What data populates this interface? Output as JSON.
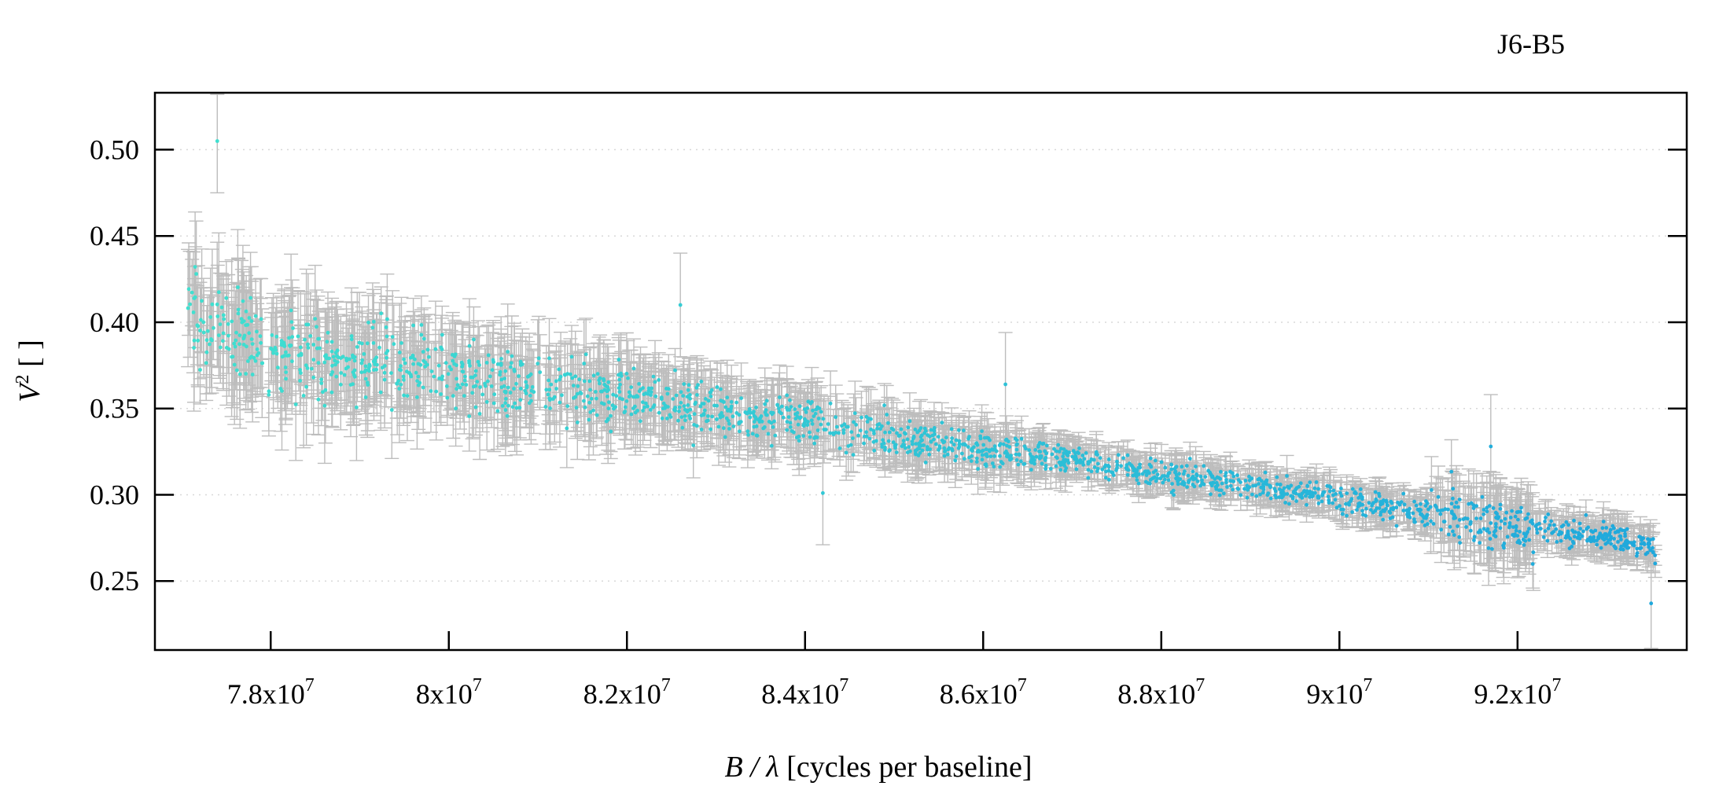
{
  "chart_data": {
    "type": "scatter",
    "title": "J6-B5",
    "xlabel": {
      "italic": "B / λ",
      "rest": " [cycles per baseline]"
    },
    "ylabel": {
      "base": "V",
      "sup": "2",
      "rest": " [ ]"
    },
    "xlim": [
      76700000,
      93900000
    ],
    "ylim": [
      0.21,
      0.533
    ],
    "x_ticks": [
      {
        "value": 78000000,
        "mantissa": "7.8x10",
        "exp": "7"
      },
      {
        "value": 80000000,
        "mantissa": "8x10",
        "exp": "7"
      },
      {
        "value": 82000000,
        "mantissa": "8.2x10",
        "exp": "7"
      },
      {
        "value": 84000000,
        "mantissa": "8.4x10",
        "exp": "7"
      },
      {
        "value": 86000000,
        "mantissa": "8.6x10",
        "exp": "7"
      },
      {
        "value": 88000000,
        "mantissa": "8.8x10",
        "exp": "7"
      },
      {
        "value": 90000000,
        "mantissa": "9x10",
        "exp": "7"
      },
      {
        "value": 92000000,
        "mantissa": "9.2x10",
        "exp": "7"
      }
    ],
    "y_ticks": [
      {
        "value": 0.25,
        "label": "0.25"
      },
      {
        "value": 0.3,
        "label": "0.30"
      },
      {
        "value": 0.35,
        "label": "0.35"
      },
      {
        "value": 0.4,
        "label": "0.40"
      },
      {
        "value": 0.45,
        "label": "0.45"
      },
      {
        "value": 0.5,
        "label": "0.50"
      }
    ],
    "grid": "horizontal dotted",
    "point_color_start": "#40e0d0",
    "point_color_end": "#1fa8dc",
    "errorbar_color": "#bdbdbd",
    "trend": [
      [
        77000000,
        0.41
      ],
      [
        77500000,
        0.395
      ],
      [
        78000000,
        0.382
      ],
      [
        79000000,
        0.378
      ],
      [
        80000000,
        0.37
      ],
      [
        81000000,
        0.364
      ],
      [
        82000000,
        0.357
      ],
      [
        83000000,
        0.35
      ],
      [
        84000000,
        0.343
      ],
      [
        85000000,
        0.333
      ],
      [
        86000000,
        0.326
      ],
      [
        87000000,
        0.32
      ],
      [
        88000000,
        0.312
      ],
      [
        89000000,
        0.305
      ],
      [
        90000000,
        0.297
      ],
      [
        91000000,
        0.289
      ],
      [
        92000000,
        0.28
      ],
      [
        93000000,
        0.276
      ],
      [
        93600000,
        0.268
      ]
    ],
    "features": [
      {
        "x": 77400000,
        "y": 0.505
      },
      {
        "x": 82600000,
        "y": 0.41
      },
      {
        "x": 84200000,
        "y": 0.301
      },
      {
        "x": 86250000,
        "y": 0.364
      },
      {
        "x": 91700000,
        "y": 0.328
      },
      {
        "x": 93500000,
        "y": 0.237
      }
    ],
    "n_points": 1900
  }
}
